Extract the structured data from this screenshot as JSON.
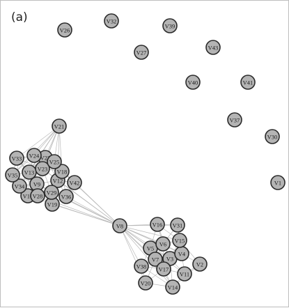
{
  "figure": {
    "panel_label": "(a)",
    "colors": {
      "node_fill": "#b4b4b4",
      "node_stroke": "#2a2a2a",
      "edge": "#b9b9b9"
    }
  },
  "graph": {
    "nodes": [
      "V1",
      "V2",
      "V3",
      "V4",
      "V5",
      "V6",
      "V7",
      "V8",
      "V9",
      "V10",
      "V11",
      "V12",
      "V13",
      "V14",
      "V15",
      "V16",
      "V17",
      "V18",
      "V19",
      "V20",
      "V21",
      "V22",
      "V23",
      "V24",
      "V25",
      "V26",
      "V27",
      "V28",
      "V29",
      "V30",
      "V31",
      "V32",
      "V33",
      "V34",
      "V35",
      "V36",
      "V37",
      "V38",
      "V39",
      "V40",
      "V41",
      "V42",
      "V43"
    ],
    "edges": [
      [
        "V21",
        "V33"
      ],
      [
        "V21",
        "V24"
      ],
      [
        "V21",
        "V22"
      ],
      [
        "V21",
        "V25"
      ],
      [
        "V21",
        "V13"
      ],
      [
        "V21",
        "V23"
      ],
      [
        "V21",
        "V35"
      ],
      [
        "V21",
        "V34"
      ],
      [
        "V21",
        "V9"
      ],
      [
        "V21",
        "V18"
      ],
      [
        "V21",
        "V12"
      ],
      [
        "V33",
        "V24"
      ],
      [
        "V33",
        "V22"
      ],
      [
        "V33",
        "V13"
      ],
      [
        "V33",
        "V35"
      ],
      [
        "V33",
        "V34"
      ],
      [
        "V33",
        "V23"
      ],
      [
        "V33",
        "V9"
      ],
      [
        "V24",
        "V22"
      ],
      [
        "V24",
        "V25"
      ],
      [
        "V24",
        "V23"
      ],
      [
        "V24",
        "V13"
      ],
      [
        "V24",
        "V9"
      ],
      [
        "V24",
        "V35"
      ],
      [
        "V22",
        "V25"
      ],
      [
        "V22",
        "V23"
      ],
      [
        "V22",
        "V18"
      ],
      [
        "V22",
        "V13"
      ],
      [
        "V22",
        "V12"
      ],
      [
        "V25",
        "V23"
      ],
      [
        "V25",
        "V18"
      ],
      [
        "V25",
        "V12"
      ],
      [
        "V25",
        "V42"
      ],
      [
        "V25",
        "V9"
      ],
      [
        "V13",
        "V35"
      ],
      [
        "V13",
        "V34"
      ],
      [
        "V13",
        "V23"
      ],
      [
        "V13",
        "V9"
      ],
      [
        "V13",
        "V10"
      ],
      [
        "V13",
        "V28"
      ],
      [
        "V23",
        "V18"
      ],
      [
        "V23",
        "V9"
      ],
      [
        "V23",
        "V12"
      ],
      [
        "V23",
        "V29"
      ],
      [
        "V23",
        "V28"
      ],
      [
        "V35",
        "V34"
      ],
      [
        "V35",
        "V9"
      ],
      [
        "V35",
        "V10"
      ],
      [
        "V34",
        "V10"
      ],
      [
        "V34",
        "V9"
      ],
      [
        "V34",
        "V28"
      ],
      [
        "V9",
        "V10"
      ],
      [
        "V9",
        "V28"
      ],
      [
        "V9",
        "V12"
      ],
      [
        "V9",
        "V29"
      ],
      [
        "V9",
        "V19"
      ],
      [
        "V18",
        "V12"
      ],
      [
        "V18",
        "V42"
      ],
      [
        "V18",
        "V29"
      ],
      [
        "V18",
        "V36"
      ],
      [
        "V12",
        "V29"
      ],
      [
        "V12",
        "V36"
      ],
      [
        "V12",
        "V42"
      ],
      [
        "V12",
        "V19"
      ],
      [
        "V12",
        "V28"
      ],
      [
        "V10",
        "V28"
      ],
      [
        "V28",
        "V29"
      ],
      [
        "V28",
        "V19"
      ],
      [
        "V29",
        "V19"
      ],
      [
        "V29",
        "V36"
      ],
      [
        "V19",
        "V36"
      ],
      [
        "V36",
        "V42"
      ],
      [
        "V8",
        "V9"
      ],
      [
        "V8",
        "V12"
      ],
      [
        "V8",
        "V29"
      ],
      [
        "V8",
        "V19"
      ],
      [
        "V8",
        "V36"
      ],
      [
        "V8",
        "V42"
      ],
      [
        "V8",
        "V28"
      ],
      [
        "V8",
        "V18"
      ],
      [
        "V8",
        "V23"
      ],
      [
        "V8",
        "V10"
      ],
      [
        "V8",
        "V16"
      ],
      [
        "V8",
        "V31"
      ],
      [
        "V8",
        "V5"
      ],
      [
        "V8",
        "V6"
      ],
      [
        "V8",
        "V7"
      ],
      [
        "V8",
        "V3"
      ],
      [
        "V8",
        "V38"
      ],
      [
        "V8",
        "V17"
      ],
      [
        "V8",
        "V20"
      ],
      [
        "V8",
        "V14"
      ],
      [
        "V8",
        "V11"
      ],
      [
        "V8",
        "V15"
      ],
      [
        "V8",
        "V4"
      ],
      [
        "V16",
        "V31"
      ],
      [
        "V16",
        "V5"
      ],
      [
        "V16",
        "V6"
      ],
      [
        "V16",
        "V15"
      ],
      [
        "V16",
        "V3"
      ],
      [
        "V31",
        "V15"
      ],
      [
        "V31",
        "V6"
      ],
      [
        "V31",
        "V4"
      ],
      [
        "V15",
        "V6"
      ],
      [
        "V15",
        "V4"
      ],
      [
        "V15",
        "V3"
      ],
      [
        "V15",
        "V2"
      ],
      [
        "V5",
        "V6"
      ],
      [
        "V5",
        "V7"
      ],
      [
        "V5",
        "V3"
      ],
      [
        "V5",
        "V38"
      ],
      [
        "V5",
        "V17"
      ],
      [
        "V6",
        "V7"
      ],
      [
        "V6",
        "V3"
      ],
      [
        "V6",
        "V4"
      ],
      [
        "V6",
        "V17"
      ],
      [
        "V7",
        "V3"
      ],
      [
        "V7",
        "V38"
      ],
      [
        "V7",
        "V17"
      ],
      [
        "V7",
        "V20"
      ],
      [
        "V7",
        "V14"
      ],
      [
        "V3",
        "V4"
      ],
      [
        "V3",
        "V17"
      ],
      [
        "V3",
        "V11"
      ],
      [
        "V3",
        "V14"
      ],
      [
        "V4",
        "V2"
      ],
      [
        "V4",
        "V11"
      ],
      [
        "V4",
        "V17"
      ],
      [
        "V38",
        "V17"
      ],
      [
        "V38",
        "V20"
      ],
      [
        "V38",
        "V14"
      ],
      [
        "V17",
        "V11"
      ],
      [
        "V17",
        "V14"
      ],
      [
        "V17",
        "V20"
      ],
      [
        "V11",
        "V14"
      ],
      [
        "V11",
        "V2"
      ],
      [
        "V20",
        "V14"
      ],
      [
        "V14",
        "V2"
      ]
    ]
  }
}
